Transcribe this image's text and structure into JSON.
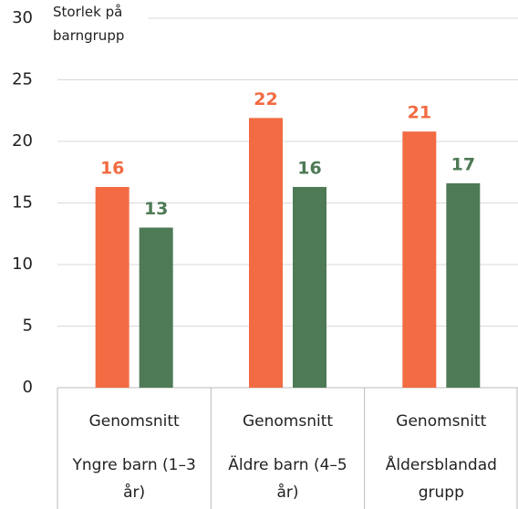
{
  "chart_data": {
    "type": "bar",
    "y_axis_label": "Storlek på barngrupp",
    "categories": [
      "Yngre barn (1–3 år)",
      "Äldre barn (4–5 år)",
      "Åldersblandad grupp"
    ],
    "sublabels": [
      "Genomsnitt",
      "Genomsnitt",
      "Genomsnitt"
    ],
    "series": [
      {
        "color": "#f26b43",
        "values": [
          16.3,
          21.9,
          20.8
        ],
        "value_labels": [
          "16",
          "22",
          "21"
        ]
      },
      {
        "color": "#4e7a55",
        "values": [
          13,
          16.3,
          16.6
        ],
        "value_labels": [
          "13",
          "16",
          "17"
        ]
      }
    ],
    "ylim": [
      0,
      30
    ],
    "yticks": [
      0,
      5,
      10,
      15,
      20,
      25,
      30
    ],
    "grid": true
  }
}
